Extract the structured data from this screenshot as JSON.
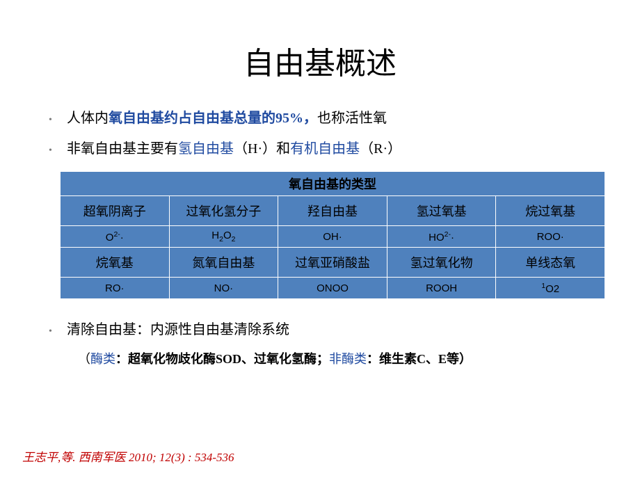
{
  "title": "自由基概述",
  "bullet1": {
    "pre": "人体内",
    "hl": "氧自由基约占自由基总量的95%，",
    "post": "也称活性氧"
  },
  "bullet2": {
    "pre": "非氧自由基主要有",
    "hl1": "氢自由基",
    "mid": "（H·）和",
    "hl2": "有机自由基",
    "post": "（R·）"
  },
  "table": {
    "header": "氧自由基的类型",
    "row1": [
      "超氧阴离子",
      "过氧化氢分子",
      "羟自由基",
      "氢过氧基",
      "烷过氧基"
    ],
    "row2": [
      {
        "t": "O",
        "sup": "2-",
        "post": "·"
      },
      {
        "t": "H",
        "sub": "2",
        "mid": "O",
        "sub2": "2"
      },
      {
        "t": "OH·"
      },
      {
        "t": "HO",
        "sup": "2-",
        "post": "·"
      },
      {
        "t": "ROO·"
      }
    ],
    "row3": [
      "烷氧基",
      "氮氧自由基",
      "过氧亚硝酸盐",
      "氢过氧化物",
      "单线态氧"
    ],
    "row4": [
      {
        "t": "RO·"
      },
      {
        "t": "NO·"
      },
      {
        "t": "ONOO"
      },
      {
        "t": "ROOH"
      },
      {
        "pre": "",
        "sup": "1",
        "t": "O2"
      }
    ]
  },
  "bullet3": "清除自由基：内源性自由基清除系统",
  "subline": {
    "open": "（",
    "hl1": "酶类",
    "part1": "：超氧化物歧化酶SOD、过氧化氢酶；",
    "hl2": "非酶类",
    "part2": "：维生素C、E等）"
  },
  "citation": "王志平,等. 西南军医 2010; 12(3) : 534-536",
  "colors": {
    "highlight": "#1f4aa0",
    "table_bg": "#4f81bd",
    "citation": "#c00000"
  }
}
